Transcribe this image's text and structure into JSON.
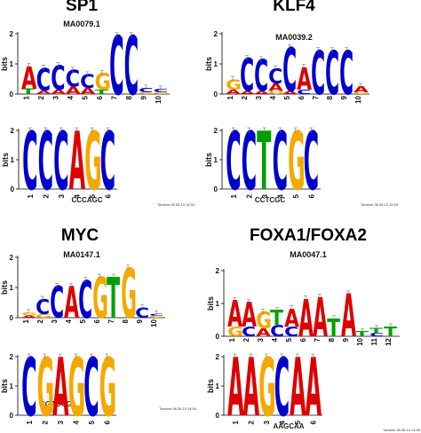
{
  "colors": {
    "A": "#dd0000",
    "C": "#0000cc",
    "G": "#f4a900",
    "T": "#00a000"
  },
  "y_axis_label": "bits",
  "panels": [
    {
      "title": "SP1",
      "motif_id": "MA0079.1",
      "sequence": "CCCAGC",
      "timestamp": "Tomtom 06.05.13 14:02",
      "top_logo": {
        "positions": [
          "1",
          "2",
          "3",
          "4",
          "5",
          "6",
          "7",
          "8",
          "9",
          "10"
        ],
        "stacks": [
          [
            [
              "T",
              0.18
            ],
            [
              "A",
              0.75
            ]
          ],
          [
            [
              "A",
              0.12
            ],
            [
              "C",
              0.75
            ]
          ],
          [
            [
              "A",
              0.15
            ],
            [
              "C",
              0.8
            ]
          ],
          [
            [
              "A",
              0.25
            ],
            [
              "C",
              0.55
            ]
          ],
          [
            [
              "A",
              0.2
            ],
            [
              "C",
              0.45
            ]
          ],
          [
            [
              "T",
              0.15
            ],
            [
              "G",
              0.55
            ]
          ],
          [
            [
              "C",
              1.95
            ]
          ],
          [
            [
              "C",
              1.95
            ]
          ],
          [
            [
              "G",
              0.06
            ],
            [
              "C",
              0.15
            ]
          ],
          [
            [
              "G",
              0.06
            ],
            [
              "C",
              0.12
            ]
          ]
        ]
      },
      "bottom_logo": {
        "positions": [
          "1",
          "2",
          "3",
          "4",
          "5",
          "6"
        ],
        "stacks": [
          [
            [
              "C",
              2.0
            ]
          ],
          [
            [
              "C",
              2.0
            ]
          ],
          [
            [
              "C",
              2.0
            ]
          ],
          [
            [
              "A",
              2.0
            ]
          ],
          [
            [
              "G",
              2.0
            ]
          ],
          [
            [
              "C",
              2.0
            ]
          ]
        ]
      }
    },
    {
      "title": "KLF4",
      "motif_id": "MA0039.2",
      "sequence": "CCTCGC",
      "timestamp": "Tomtom 06.05.13 14:04",
      "top_logo": {
        "positions": [
          "1",
          "2",
          "3",
          "4",
          "5",
          "6",
          "7",
          "8",
          "9",
          "10"
        ],
        "stacks": [
          [
            [
              "A",
              0.15
            ],
            [
              "G",
              0.35
            ]
          ],
          [
            [
              "A",
              0.1
            ],
            [
              "C",
              1.1
            ]
          ],
          [
            [
              "A",
              0.1
            ],
            [
              "C",
              1.05
            ]
          ],
          [
            [
              "G",
              0.1
            ],
            [
              "A",
              0.25
            ],
            [
              "C",
              0.5
            ]
          ],
          [
            [
              "A",
              0.1
            ],
            [
              "C",
              1.45
            ]
          ],
          [
            [
              "C",
              0.15
            ],
            [
              "A",
              0.75
            ]
          ],
          [
            [
              "C",
              1.45
            ]
          ],
          [
            [
              "C",
              1.45
            ]
          ],
          [
            [
              "C",
              1.45
            ]
          ],
          [
            [
              "G",
              0.06
            ],
            [
              "A",
              0.2
            ]
          ]
        ]
      },
      "bottom_logo": {
        "positions": [
          "1",
          "2",
          "3",
          "4",
          "5",
          "6"
        ],
        "stacks": [
          [
            [
              "C",
              2.0
            ]
          ],
          [
            [
              "C",
              2.0
            ]
          ],
          [
            [
              "T",
              2.0
            ]
          ],
          [
            [
              "C",
              2.0
            ]
          ],
          [
            [
              "G",
              2.0
            ]
          ],
          [
            [
              "C",
              2.0
            ]
          ]
        ]
      }
    },
    {
      "title": "MYC",
      "motif_id": "MA0147.1",
      "sequence": "CGAGCG",
      "timestamp": "Tomtom 06.05.13 14:04",
      "top_logo": {
        "positions": [
          "1",
          "2",
          "3",
          "4",
          "5",
          "6",
          "7",
          "8",
          "9",
          "10"
        ],
        "stacks": [
          [
            [
              "A",
              0.08
            ],
            [
              "G",
              0.1
            ]
          ],
          [
            [
              "G",
              0.12
            ],
            [
              "C",
              0.5
            ]
          ],
          [
            [
              "C",
              1.05
            ]
          ],
          [
            [
              "A",
              1.05
            ]
          ],
          [
            [
              "C",
              1.25
            ]
          ],
          [
            [
              "G",
              1.35
            ]
          ],
          [
            [
              "T",
              1.35
            ]
          ],
          [
            [
              "G",
              1.65
            ]
          ],
          [
            [
              "C",
              0.35
            ]
          ],
          [
            [
              "G",
              0.06
            ],
            [
              "C",
              0.08
            ]
          ]
        ]
      },
      "bottom_logo": {
        "positions": [
          "1",
          "2",
          "3",
          "4",
          "5",
          "6"
        ],
        "stacks": [
          [
            [
              "C",
              2.0
            ]
          ],
          [
            [
              "G",
              2.0
            ]
          ],
          [
            [
              "A",
              2.0
            ]
          ],
          [
            [
              "G",
              2.0
            ]
          ],
          [
            [
              "C",
              2.0
            ]
          ],
          [
            [
              "G",
              2.0
            ]
          ]
        ]
      }
    },
    {
      "title": "FOXA1/FOXA2",
      "motif_id": "MA0047.1",
      "sequence": "AAGCAA",
      "timestamp": "Tomtom 06.05.13 14:05",
      "top_logo": {
        "positions": [
          "1",
          "2",
          "3",
          "4",
          "5",
          "6",
          "7",
          "8",
          "9",
          "10",
          "11",
          "12"
        ],
        "stacks": [
          [
            [
              "G",
              0.3
            ],
            [
              "A",
              0.8
            ]
          ],
          [
            [
              "C",
              0.3
            ],
            [
              "A",
              0.75
            ]
          ],
          [
            [
              "A",
              0.25
            ],
            [
              "G",
              0.5
            ]
          ],
          [
            [
              "C",
              0.35
            ],
            [
              "T",
              0.45
            ]
          ],
          [
            [
              "C",
              0.3
            ],
            [
              "A",
              0.55
            ]
          ],
          [
            [
              "A",
              1.15
            ]
          ],
          [
            [
              "A",
              1.2
            ]
          ],
          [
            [
              "T",
              0.55
            ]
          ],
          [
            [
              "A",
              1.3
            ]
          ],
          [
            [
              "T",
              0.15
            ]
          ],
          [
            [
              "C",
              0.1
            ],
            [
              "T",
              0.15
            ]
          ],
          [
            [
              "T",
              0.3
            ]
          ]
        ]
      },
      "bottom_logo": {
        "positions": [
          "1",
          "2",
          "3",
          "4",
          "5",
          "6"
        ],
        "stacks": [
          [
            [
              "A",
              2.0
            ]
          ],
          [
            [
              "A",
              2.0
            ]
          ],
          [
            [
              "G",
              2.0
            ]
          ],
          [
            [
              "C",
              2.0
            ]
          ],
          [
            [
              "A",
              2.0
            ]
          ],
          [
            [
              "A",
              2.0
            ]
          ]
        ]
      }
    }
  ]
}
